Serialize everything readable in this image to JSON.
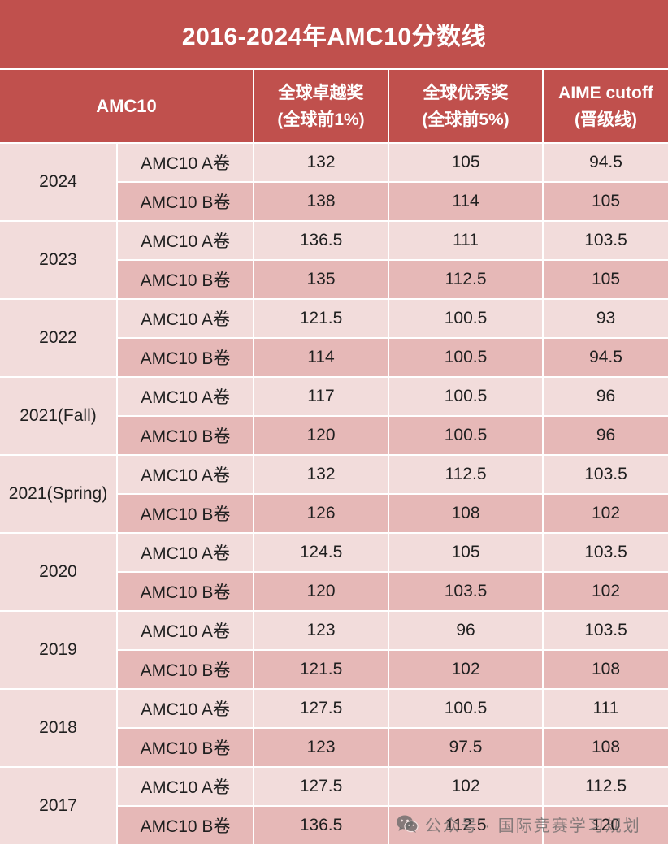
{
  "title": "2016-2024年AMC10分数线",
  "header": {
    "group": "AMC10",
    "columns": [
      {
        "line1": "全球卓越奖",
        "line2": "(全球前1%)"
      },
      {
        "line1": "全球优秀奖",
        "line2": "(全球前5%)"
      },
      {
        "line1": "AIME cutoff",
        "line2": "(晋级线)"
      }
    ]
  },
  "years": [
    {
      "year": "2024",
      "papers": [
        {
          "paper": "AMC10 A卷",
          "excellence": "132",
          "distinction": "105",
          "aime": "94.5"
        },
        {
          "paper": "AMC10 B卷",
          "excellence": "138",
          "distinction": "114",
          "aime": "105"
        }
      ]
    },
    {
      "year": "2023",
      "papers": [
        {
          "paper": "AMC10 A卷",
          "excellence": "136.5",
          "distinction": "111",
          "aime": "103.5"
        },
        {
          "paper": "AMC10 B卷",
          "excellence": "135",
          "distinction": "112.5",
          "aime": "105"
        }
      ]
    },
    {
      "year": "2022",
      "papers": [
        {
          "paper": "AMC10 A卷",
          "excellence": "121.5",
          "distinction": "100.5",
          "aime": "93"
        },
        {
          "paper": "AMC10 B卷",
          "excellence": "114",
          "distinction": "100.5",
          "aime": "94.5"
        }
      ]
    },
    {
      "year": "2021(Fall)",
      "papers": [
        {
          "paper": "AMC10 A卷",
          "excellence": "117",
          "distinction": "100.5",
          "aime": "96"
        },
        {
          "paper": "AMC10 B卷",
          "excellence": "120",
          "distinction": "100.5",
          "aime": "96"
        }
      ]
    },
    {
      "year": "2021(Spring)",
      "papers": [
        {
          "paper": "AMC10 A卷",
          "excellence": "132",
          "distinction": "112.5",
          "aime": "103.5"
        },
        {
          "paper": "AMC10 B卷",
          "excellence": "126",
          "distinction": "108",
          "aime": "102"
        }
      ]
    },
    {
      "year": "2020",
      "papers": [
        {
          "paper": "AMC10 A卷",
          "excellence": "124.5",
          "distinction": "105",
          "aime": "103.5"
        },
        {
          "paper": "AMC10 B卷",
          "excellence": "120",
          "distinction": "103.5",
          "aime": "102"
        }
      ]
    },
    {
      "year": "2019",
      "papers": [
        {
          "paper": "AMC10 A卷",
          "excellence": "123",
          "distinction": "96",
          "aime": "103.5"
        },
        {
          "paper": "AMC10 B卷",
          "excellence": "121.5",
          "distinction": "102",
          "aime": "108"
        }
      ]
    },
    {
      "year": "2018",
      "papers": [
        {
          "paper": "AMC10 A卷",
          "excellence": "127.5",
          "distinction": "100.5",
          "aime": "111"
        },
        {
          "paper": "AMC10 B卷",
          "excellence": "123",
          "distinction": "97.5",
          "aime": "108"
        }
      ]
    },
    {
      "year": "2017",
      "papers": [
        {
          "paper": "AMC10 A卷",
          "excellence": "127.5",
          "distinction": "102",
          "aime": "112.5"
        },
        {
          "paper": "AMC10 B卷",
          "excellence": "136.5",
          "distinction": "112.5",
          "aime": "120"
        }
      ]
    }
  ],
  "watermark": {
    "icon": "wechat-icon",
    "text": "公众号 · 国际竞赛学习规划"
  },
  "colors": {
    "header_bg": "#C0504D",
    "header_text": "#FFFFFF",
    "row_light": "#F2DCDB",
    "row_dark": "#E6B8B7"
  }
}
